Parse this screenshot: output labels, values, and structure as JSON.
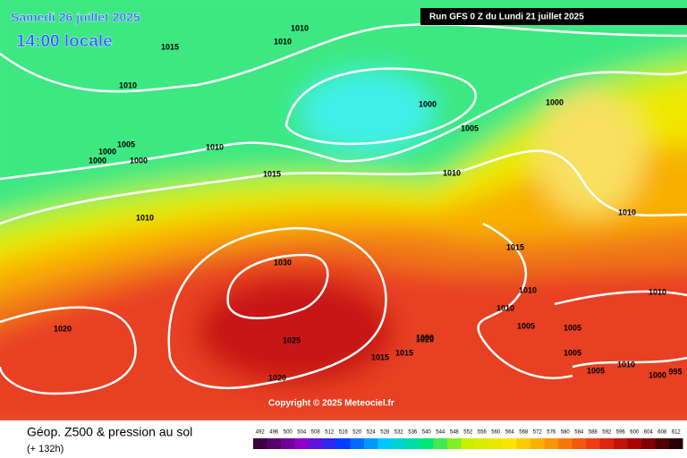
{
  "header": {
    "date": "Samedi 26 juillet 2025",
    "time": "14:00 locale",
    "run": "Run GFS 0 Z du Lundi 21 juillet 2025"
  },
  "isobar_labels": [
    "1010",
    "1010",
    "1015",
    "1010",
    "1000",
    "1005",
    "1000",
    "1000",
    "1000",
    "1010",
    "1015",
    "1010",
    "1005",
    "1010",
    "1000",
    "1010",
    "1030",
    "1025",
    "1020",
    "1020",
    "1015",
    "1010",
    "1010",
    "1005",
    "1005",
    "1000",
    "1005",
    "1020",
    "1015",
    "1015",
    "1005",
    "1010",
    "1000",
    "995",
    "1010"
  ],
  "copyright": "Copyright © 2025 Meteociel.fr",
  "footer": {
    "title": "Géop. Z500 & pression au sol",
    "lead": "(+ 132h)"
  },
  "colorbar_ticks": [
    492,
    496,
    500,
    504,
    508,
    512,
    516,
    520,
    524,
    528,
    532,
    536,
    540,
    544,
    548,
    552,
    556,
    560,
    564,
    568,
    572,
    576,
    580,
    584,
    588,
    592,
    596,
    600,
    604,
    608,
    612
  ]
}
